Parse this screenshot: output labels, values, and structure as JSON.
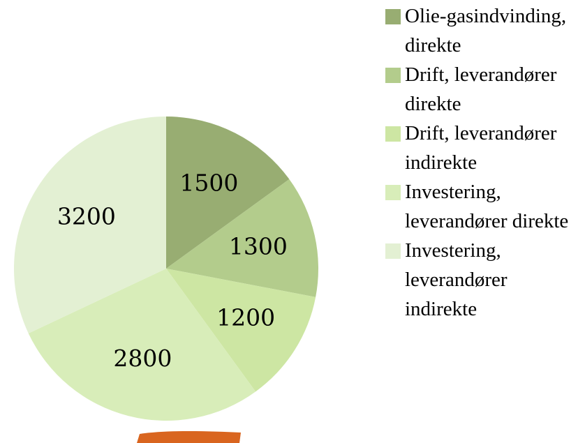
{
  "chart_data": {
    "type": "pie",
    "series": [
      {
        "name": "Olie-gasindvinding, direkte",
        "value": 1500,
        "color": "#98ad72"
      },
      {
        "name": "Drift, leverandører direkte",
        "value": 1300,
        "color": "#b3cc8c"
      },
      {
        "name": "Drift, leverandører indirekte",
        "value": 1200,
        "color": "#cde6a3"
      },
      {
        "name": "Investering, leverandører direkte",
        "value": 2800,
        "color": "#d8edb9"
      },
      {
        "name": "Investering, leverandører indirekte",
        "value": 3200,
        "color": "#e3f0d3"
      }
    ]
  }
}
